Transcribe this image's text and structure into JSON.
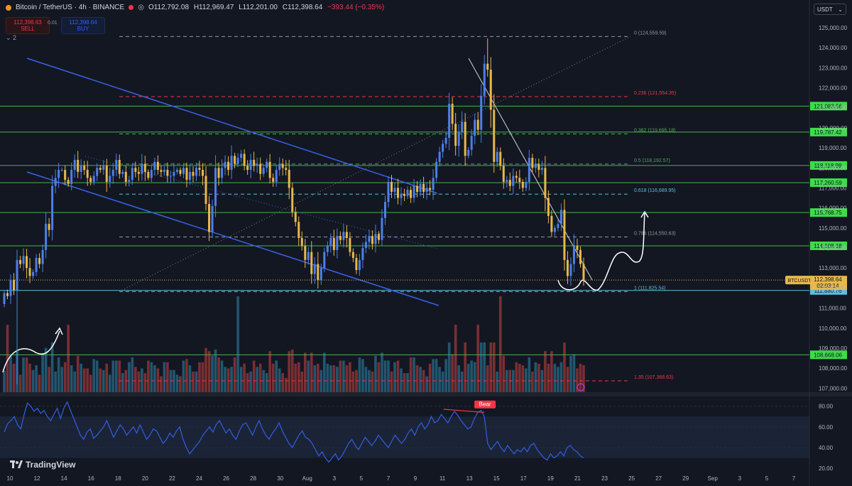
{
  "header": {
    "symbol": "Bitcoin / TetherUS · 4h · BINANCE",
    "ohlc": {
      "open": "O112,792.08",
      "high": "H112,969.47",
      "low": "L112,201.00",
      "close": "C112,398.64",
      "change": "−393.44 (−0.35%)"
    },
    "sell_price": "112,398.63",
    "sell_label": "SELL",
    "spread": "0.01",
    "buy_price": "112,398.64",
    "buy_label": "BUY",
    "indicator_count": "2",
    "currency": "USDT"
  },
  "brand": "TradingView",
  "colors": {
    "background": "#131722",
    "up": "#4e7fe8",
    "down": "#e7b84a",
    "fib": "#9598a1",
    "fib_red": "#f23645",
    "support": "#4caf50",
    "channel": "#3a62e6",
    "rsi": "#2f5bd8"
  },
  "chart_data": {
    "type": "candlestick",
    "price_axis": {
      "ticks": [
        107000,
        108000,
        109000,
        110000,
        111000,
        112000,
        113000,
        114000,
        115000,
        116000,
        117000,
        118000,
        119000,
        120000,
        121000,
        122000,
        123000,
        124000,
        125000
      ],
      "range": [
        106800,
        125600
      ]
    },
    "time_axis": {
      "labels": [
        "10",
        "12",
        "14",
        "16",
        "18",
        "20",
        "22",
        "24",
        "26",
        "28",
        "30",
        "Aug",
        "3",
        "5",
        "7",
        "9",
        "11",
        "13",
        "15",
        "17",
        "19",
        "21",
        "23",
        "25",
        "27",
        "29",
        "Sep",
        "3",
        "5",
        "7"
      ]
    },
    "last_price": {
      "label": "BTCUSDT",
      "value": "112,398.64",
      "countdown": "02:03:14"
    },
    "horizontal_levels": [
      {
        "value": 121083.56,
        "label": "121,083.56",
        "color": "#4caf50"
      },
      {
        "value": 119787.42,
        "label": "119,787.42",
        "color": "#4caf50"
      },
      {
        "value": 118118.99,
        "label": "118,118.99",
        "color": "#4caf50"
      },
      {
        "value": 117260.59,
        "label": "117,260.59",
        "color": "#4caf50"
      },
      {
        "value": 115768.75,
        "label": "115,768.75",
        "color": "#4caf50"
      },
      {
        "value": 114108.18,
        "label": "114,108.18",
        "color": "#4caf50"
      },
      {
        "value": 111880.76,
        "label": "111,880.76",
        "color": "#5bc0de"
      },
      {
        "value": 108668.06,
        "label": "108,668.06",
        "color": "#4caf50"
      }
    ],
    "fibonacci": [
      {
        "ratio": "0",
        "value": 124559.59,
        "label": "0 (124,559.59)",
        "color": "#9598a1"
      },
      {
        "ratio": "0.236",
        "value": 121554.35,
        "label": "0.236 (121,554.35)",
        "color": "#f23645"
      },
      {
        "ratio": "0.382",
        "value": 119695.18,
        "label": "0.382 (119,695.18)",
        "color": "#4caf50"
      },
      {
        "ratio": "0.5",
        "value": 118192.57,
        "label": "0.5 (118,192.57)",
        "color": "#4caf50"
      },
      {
        "ratio": "0.618",
        "value": 116689.95,
        "label": "0.618 (116,689.95)",
        "color": "#5bc0de"
      },
      {
        "ratio": "0.786",
        "value": 114550.63,
        "label": "0.786 (114,550.63)",
        "color": "#9598a1"
      },
      {
        "ratio": "1",
        "value": 111825.54,
        "label": "1 (111,825.54)",
        "color": "#5bc0de"
      },
      {
        "ratio": "1.35",
        "value": 107368.63,
        "label": "1.35 (107,368.63)",
        "color": "#f23645"
      }
    ],
    "rsi": {
      "ticks": [
        20,
        40,
        60,
        80
      ],
      "range": [
        18,
        88
      ],
      "bear_label": "Bear",
      "values": [
        55,
        63,
        66,
        70,
        62,
        58,
        72,
        83,
        80,
        75,
        78,
        73,
        76,
        70,
        66,
        72,
        78,
        68,
        78,
        84,
        76,
        68,
        60,
        52,
        48,
        55,
        58,
        49,
        52,
        56,
        60,
        66,
        58,
        50,
        56,
        62,
        58,
        52,
        56,
        60,
        54,
        62,
        55,
        48,
        52,
        58,
        56,
        50,
        44,
        48,
        54,
        50,
        56,
        60,
        48,
        40,
        34,
        38,
        42,
        46,
        52,
        56,
        60,
        55,
        62,
        66,
        60,
        54,
        58,
        52,
        48,
        56,
        62,
        64,
        58,
        52,
        60,
        66,
        58,
        52,
        48,
        54,
        58,
        64,
        56,
        50,
        44,
        40,
        46,
        52,
        56,
        50,
        48,
        44,
        38,
        32,
        36,
        30,
        26,
        30,
        34,
        28,
        32,
        38,
        44,
        48,
        42,
        38,
        44,
        50,
        46,
        42,
        46,
        52,
        48,
        44,
        40,
        46,
        52,
        48,
        44,
        48,
        54,
        58,
        52,
        60,
        64,
        58,
        62,
        70,
        64,
        66,
        72,
        68,
        64,
        70,
        75,
        71,
        66,
        62,
        58,
        60,
        68,
        74,
        76,
        70,
        44,
        38,
        42,
        46,
        40,
        36,
        42,
        38,
        34,
        38,
        36,
        40,
        36,
        42,
        44,
        38,
        34,
        30,
        28,
        34,
        30,
        32,
        36,
        32,
        40,
        42,
        38,
        36,
        32,
        30
      ]
    },
    "candles": {
      "count": 176,
      "close_path": [
        111750,
        111600,
        112400,
        111900,
        113400,
        113200,
        113600,
        113000,
        112600,
        112800,
        113500,
        113200,
        113900,
        115200,
        114900,
        117100,
        117500,
        117900,
        117900,
        117400,
        117200,
        117900,
        118400,
        117800,
        118100,
        117900,
        117500,
        117300,
        117600,
        118000,
        117900,
        118100,
        117300,
        117600,
        117900,
        118400,
        117700,
        117800,
        117300,
        117400,
        118000,
        117800,
        117700,
        118200,
        117800,
        117500,
        117900,
        118300,
        117900,
        117800,
        117900,
        117600,
        117600,
        117800,
        117900,
        117700,
        118000,
        117400,
        117800,
        117600,
        118000,
        117900,
        117600,
        116200,
        114800,
        116100,
        118000,
        117500,
        118000,
        118300,
        117900,
        118600,
        118200,
        118500,
        118700,
        118100,
        117900,
        118400,
        118100,
        118200,
        117700,
        118000,
        118300,
        117500,
        117300,
        117900,
        118200,
        118000,
        117900,
        117000,
        115800,
        115300,
        114500,
        114100,
        113400,
        113800,
        112700,
        113200,
        112400,
        113000,
        113800,
        114100,
        114500,
        113900,
        114600,
        114400,
        114800,
        114500,
        113800,
        113500,
        112900,
        113400,
        114000,
        114300,
        114600,
        114200,
        114700,
        114400,
        115500,
        116300,
        117300,
        116800,
        117000,
        116500,
        116700,
        116600,
        116900,
        116500,
        117100,
        116800,
        117200,
        116800,
        117000,
        116900,
        117500,
        118300,
        118800,
        119200,
        119500,
        121200,
        120200,
        119100,
        119800,
        120300,
        118600,
        118900,
        119600,
        120400,
        119900,
        121600,
        123200,
        122900,
        120900,
        118300,
        118800,
        118100,
        117300,
        117400,
        117100,
        117600,
        117500,
        117300,
        117000,
        117300,
        118500,
        118000,
        118200,
        117900,
        118000,
        116500,
        115600,
        114800,
        115000,
        115200,
        115900,
        113400,
        112600,
        113200,
        114100,
        113900,
        113200,
        112398.64
      ]
    }
  }
}
